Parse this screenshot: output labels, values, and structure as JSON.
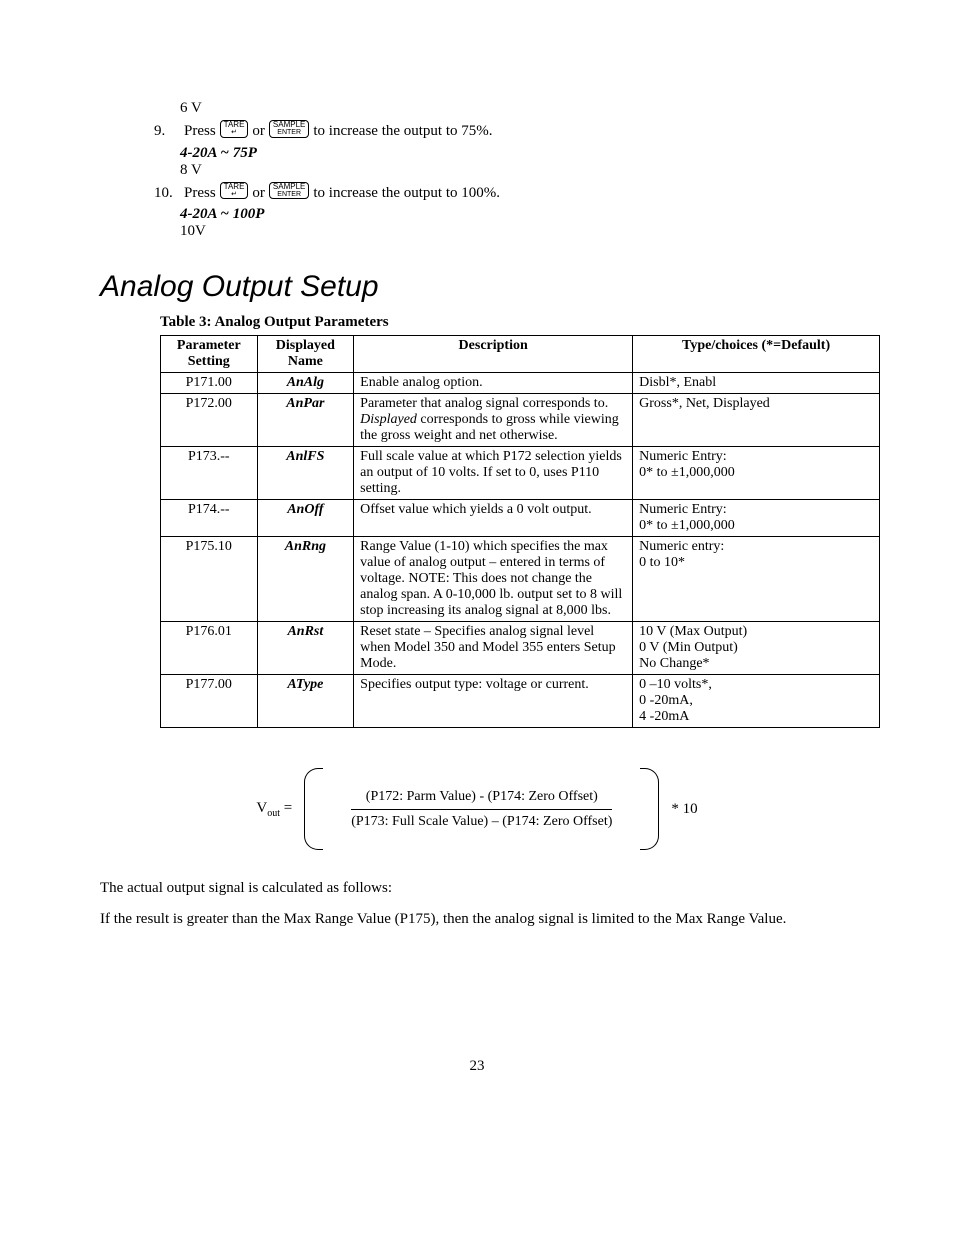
{
  "steps": {
    "pre_value": "6 V",
    "s9": {
      "num": "9.",
      "action_a": "Press",
      "key1_top": "TARE",
      "key1_sub": "↵",
      "or": "or",
      "key2_top": "SAMPLE",
      "key2_sub": "ENTER",
      "action_b": " to increase the output to 75%.",
      "disp": "4-20A ~ 75P",
      "value": "8 V"
    },
    "s10": {
      "num": "10.",
      "action_a": "Press",
      "key1_top": "TARE",
      "key1_sub": "↵",
      "or": "or",
      "key2_top": "SAMPLE",
      "key2_sub": "ENTER",
      "action_b": " to increase the output to 100%.",
      "disp": "4-20A ~ 100P",
      "value": "10V"
    }
  },
  "section_title": "Analog Output Setup",
  "table": {
    "caption": "Table 3:  Analog Output Parameters",
    "headers": [
      "Parameter Setting",
      "Displayed Name",
      "Description",
      "Type/choices (*=Default)"
    ],
    "col_widths": [
      "90px",
      "90px",
      "260px",
      "230px"
    ],
    "rows": [
      [
        "P171.00",
        "AnAlg",
        "Enable analog option.",
        "Disbl*, Enabl"
      ],
      [
        "P172.00",
        "AnPar",
        "Parameter that analog signal corresponds to. <i>Displayed</i> corresponds to gross while viewing the gross weight and net otherwise.",
        "Gross*, Net, Displayed"
      ],
      [
        "P173.--",
        "AnlFS",
        "Full scale value at which P172 selection yields an output of 10 volts. If set to 0, uses P110 setting.",
        "Numeric Entry:<br>0* to ±1,000,000"
      ],
      [
        "P174.--",
        "AnOff",
        "Offset value which yields a 0 volt output.",
        "Numeric Entry:<br>0* to ±1,000,000"
      ],
      [
        "P175.10",
        "AnRng",
        "Range Value (1-10) which specifies the max value of analog output – entered in terms of voltage. NOTE: This does not change the analog span. A 0-10,000 lb. output set to 8 will stop increasing its analog signal at 8,000 lbs.",
        "Numeric entry:<br>0 to 10*"
      ],
      [
        "P176.01",
        "AnRst",
        "Reset state – Specifies analog signal level when Model 350 and Model 355 enters Setup Mode.",
        "10 V (Max Output)<br>0 V (Min Output)<br>No Change*"
      ],
      [
        "P177.00",
        "AType",
        "Specifies output type: voltage or current.",
        "0 –10 volts*,<br>0 -20mA,<br>4 -20mA"
      ]
    ]
  },
  "formula": {
    "lhs": "V",
    "lhs_sub": "out",
    "eq": " =",
    "numer": "(P172: Parm Value) - (P174: Zero Offset)",
    "denom": "(P173: Full Scale Value) – (P174: Zero Offset)",
    "mult": "* 10"
  },
  "para1": "The actual output signal is calculated as follows:",
  "para2": "If the result is greater than the Max Range Value (P175), then the analog signal is limited to the Max Range Value.",
  "page_number": "23"
}
